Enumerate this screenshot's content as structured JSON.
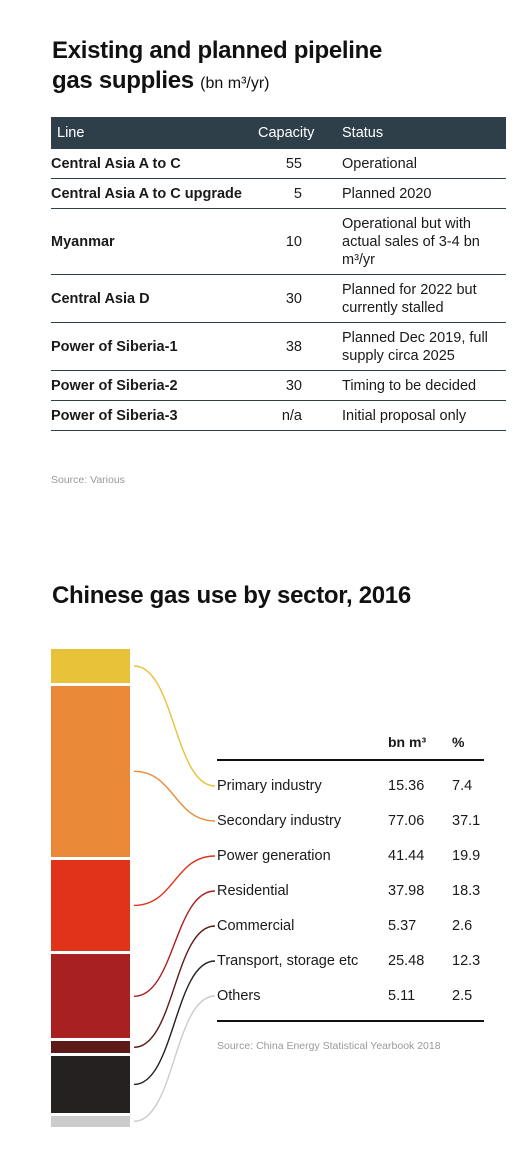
{
  "table": {
    "title_line1": "Existing and planned pipeline",
    "title_line2": "gas supplies",
    "title_unit": "(bn m³/yr)",
    "headers": [
      "Line",
      "Capacity",
      "Status"
    ],
    "rows": [
      {
        "line": "Central Asia A to C",
        "capacity": "55",
        "status": "Operational"
      },
      {
        "line": "Central Asia A to C upgrade",
        "capacity": "5",
        "status": "Planned 2020"
      },
      {
        "line": "Myanmar",
        "capacity": "10",
        "status": "Operational but with actual sales of 3-4 bn m³/yr"
      },
      {
        "line": "Central Asia D",
        "capacity": "30",
        "status": "Planned for 2022 but currently stalled"
      },
      {
        "line": "Power of Siberia-1",
        "capacity": "38",
        "status": "Planned Dec 2019, full supply circa 2025"
      },
      {
        "line": "Power of Siberia-2",
        "capacity": "30",
        "status": "Timing to be decided"
      },
      {
        "line": "Power of Siberia-3",
        "capacity": "n/a",
        "status": "Initial proposal only"
      }
    ],
    "source": "Source: Various",
    "header_color": "#2e3f4a"
  },
  "chart_data": {
    "type": "bar",
    "title": "Chinese gas use by sector, 2016",
    "stacked": true,
    "columns": [
      "bn m³",
      "%"
    ],
    "categories": [
      "Primary industry",
      "Secondary industry",
      "Power generation",
      "Residential",
      "Commercial",
      "Transport, storage etc",
      "Others"
    ],
    "values": [
      15.36,
      77.06,
      41.44,
      37.98,
      5.37,
      25.48,
      5.11
    ],
    "value_labels": [
      "15.36",
      "77.06",
      "41.44",
      "37.98",
      "5.37",
      "25.48",
      "5.11"
    ],
    "percents": [
      7.4,
      37.1,
      19.9,
      18.3,
      2.6,
      12.3,
      2.5
    ],
    "percent_labels": [
      "7.4",
      "37.1",
      "19.9",
      "18.3",
      "2.6",
      "12.3",
      "2.5"
    ],
    "colors": [
      "#e8c33a",
      "#ea8a38",
      "#e0331a",
      "#a82020",
      "#5c1a18",
      "#252120",
      "#cccccc"
    ],
    "source": "Source: China Energy Statistical Yearbook 2018"
  }
}
